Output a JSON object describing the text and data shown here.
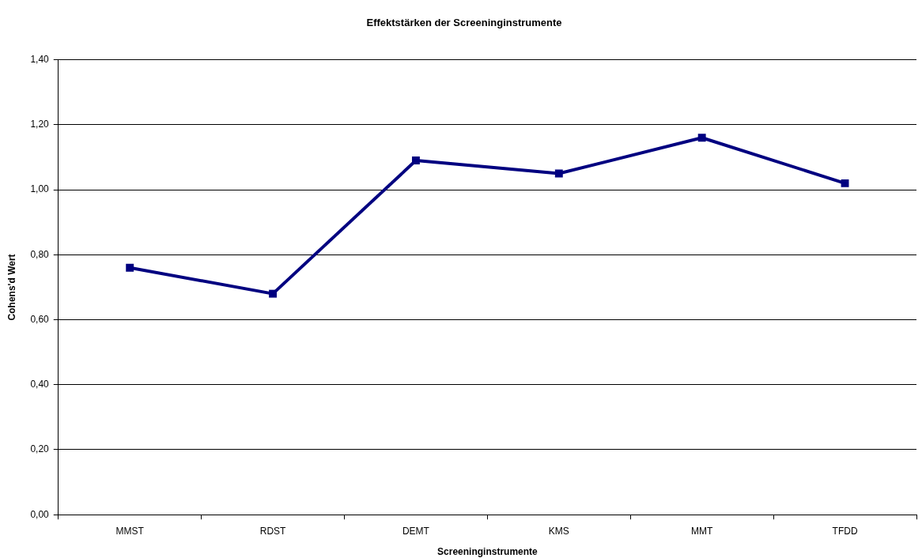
{
  "chart_data": {
    "type": "line",
    "title": "Effektstärken der Screeninginstrumente",
    "xlabel": "Screeninginstrumente",
    "ylabel": "Cohens'd Wert",
    "categories": [
      "MMST",
      "RDST",
      "DEMT",
      "KMS",
      "MMT",
      "TFDD"
    ],
    "series": [
      {
        "color": "#000080",
        "values": [
          0.76,
          0.68,
          1.09,
          1.05,
          1.16,
          1.02
        ]
      }
    ],
    "ylim": [
      0,
      1.4
    ],
    "yticks": [
      {
        "value": 0,
        "label": "0,00"
      },
      {
        "value": 0.2,
        "label": "0,20"
      },
      {
        "value": 0.4,
        "label": "0,40"
      },
      {
        "value": 0.6,
        "label": "0,60"
      },
      {
        "value": 0.8,
        "label": "0,80"
      },
      {
        "value": 1,
        "label": "1,00"
      },
      {
        "value": 1.2,
        "label": "1,20"
      },
      {
        "value": 1.4,
        "label": "1,40"
      }
    ],
    "grid": "y",
    "legend": false,
    "marker": "square",
    "line_style": "solid"
  }
}
